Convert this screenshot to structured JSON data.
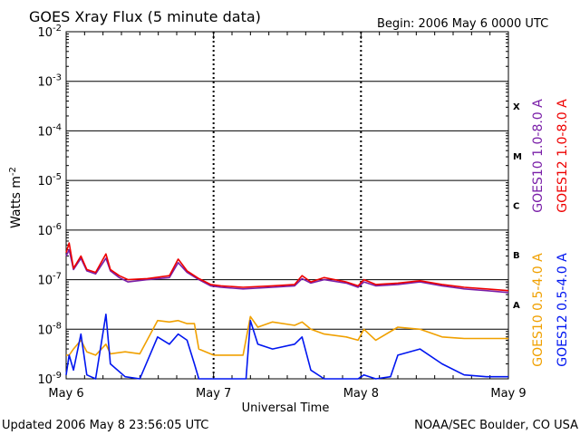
{
  "chart_data": {
    "type": "line",
    "title": "GOES Xray Flux (5 minute data)",
    "begin_label": "Begin:  2006 May 6 0000 UTC",
    "xlabel": "Universal Time",
    "ylabel": "Watts m",
    "ylabel_sup": "-2",
    "y_scale": "log",
    "ylim": [
      1e-09,
      0.01
    ],
    "y_ticks": [
      {
        "base": "10",
        "exp": "-9"
      },
      {
        "base": "10",
        "exp": "-8"
      },
      {
        "base": "10",
        "exp": "-7"
      },
      {
        "base": "10",
        "exp": "-6"
      },
      {
        "base": "10",
        "exp": "-5"
      },
      {
        "base": "10",
        "exp": "-4"
      },
      {
        "base": "10",
        "exp": "-3"
      },
      {
        "base": "10",
        "exp": "-2"
      }
    ],
    "x_range_days": [
      0,
      3
    ],
    "x_tick_labels": [
      "May 6",
      "May 7",
      "May 8",
      "May 9"
    ],
    "flare_classes": [
      {
        "label": "A",
        "exp": -8
      },
      {
        "label": "B",
        "exp": -7
      },
      {
        "label": "C",
        "exp": -6
      },
      {
        "label": "M",
        "exp": -5
      },
      {
        "label": "X",
        "exp": -4
      }
    ],
    "grid": "horizontal lines at each decade; dashed vertical lines at day boundaries",
    "legend_placement": "right, vertical text",
    "series": [
      {
        "name": "GOES10 1.0-8.0 A",
        "color": "#7a1fa8",
        "points": [
          [
            0.0,
            3e-07
          ],
          [
            0.02,
            4e-07
          ],
          [
            0.05,
            1.6e-07
          ],
          [
            0.1,
            2.7e-07
          ],
          [
            0.14,
            1.5e-07
          ],
          [
            0.2,
            1.3e-07
          ],
          [
            0.27,
            2.7e-07
          ],
          [
            0.3,
            1.5e-07
          ],
          [
            0.36,
            1.1e-07
          ],
          [
            0.42,
            9e-08
          ],
          [
            0.55,
            1e-07
          ],
          [
            0.7,
            1.1e-07
          ],
          [
            0.76,
            2.2e-07
          ],
          [
            0.82,
            1.4e-07
          ],
          [
            0.9,
            1e-07
          ],
          [
            0.98,
            7.5e-08
          ],
          [
            1.05,
            7e-08
          ],
          [
            1.2,
            6.5e-08
          ],
          [
            1.4,
            7e-08
          ],
          [
            1.55,
            7.5e-08
          ],
          [
            1.6,
            1.05e-07
          ],
          [
            1.66,
            8.5e-08
          ],
          [
            1.75,
            1e-07
          ],
          [
            1.9,
            8.5e-08
          ],
          [
            1.98,
            7e-08
          ],
          [
            2.02,
            9e-08
          ],
          [
            2.1,
            7.5e-08
          ],
          [
            2.25,
            8e-08
          ],
          [
            2.4,
            9e-08
          ],
          [
            2.55,
            7.5e-08
          ],
          [
            2.7,
            6.5e-08
          ],
          [
            2.85,
            6e-08
          ],
          [
            3.0,
            5.5e-08
          ]
        ]
      },
      {
        "name": "GOES12 1.0-8.0 A",
        "color": "#ee0000",
        "points": [
          [
            0.0,
            3.5e-07
          ],
          [
            0.02,
            5.5e-07
          ],
          [
            0.05,
            1.7e-07
          ],
          [
            0.1,
            3e-07
          ],
          [
            0.14,
            1.6e-07
          ],
          [
            0.2,
            1.4e-07
          ],
          [
            0.27,
            3.3e-07
          ],
          [
            0.3,
            1.6e-07
          ],
          [
            0.36,
            1.2e-07
          ],
          [
            0.42,
            1e-07
          ],
          [
            0.55,
            1.05e-07
          ],
          [
            0.7,
            1.2e-07
          ],
          [
            0.76,
            2.6e-07
          ],
          [
            0.82,
            1.5e-07
          ],
          [
            0.9,
            1.05e-07
          ],
          [
            0.98,
            8e-08
          ],
          [
            1.05,
            7.5e-08
          ],
          [
            1.2,
            7e-08
          ],
          [
            1.4,
            7.5e-08
          ],
          [
            1.55,
            8e-08
          ],
          [
            1.6,
            1.2e-07
          ],
          [
            1.66,
            9e-08
          ],
          [
            1.75,
            1.1e-07
          ],
          [
            1.9,
            9e-08
          ],
          [
            1.98,
            7.5e-08
          ],
          [
            2.02,
            1e-07
          ],
          [
            2.1,
            8e-08
          ],
          [
            2.25,
            8.5e-08
          ],
          [
            2.4,
            9.5e-08
          ],
          [
            2.55,
            8e-08
          ],
          [
            2.7,
            7e-08
          ],
          [
            2.85,
            6.5e-08
          ],
          [
            3.0,
            6e-08
          ]
        ]
      },
      {
        "name": "GOES10 0.5-4.0 A",
        "color": "#f0a000",
        "points": [
          [
            0.0,
            3e-09
          ],
          [
            0.02,
            3e-09
          ],
          [
            0.05,
            4e-09
          ],
          [
            0.1,
            6e-09
          ],
          [
            0.14,
            3.5e-09
          ],
          [
            0.2,
            3e-09
          ],
          [
            0.27,
            5e-09
          ],
          [
            0.3,
            3.2e-09
          ],
          [
            0.4,
            3.5e-09
          ],
          [
            0.5,
            3.2e-09
          ],
          [
            0.62,
            1.5e-08
          ],
          [
            0.7,
            1.4e-08
          ],
          [
            0.76,
            1.5e-08
          ],
          [
            0.82,
            1.3e-08
          ],
          [
            0.87,
            1.3e-08
          ],
          [
            0.9,
            4e-09
          ],
          [
            1.0,
            3e-09
          ],
          [
            1.2,
            3e-09
          ],
          [
            1.25,
            1.8e-08
          ],
          [
            1.3,
            1.1e-08
          ],
          [
            1.4,
            1.4e-08
          ],
          [
            1.55,
            1.2e-08
          ],
          [
            1.6,
            1.4e-08
          ],
          [
            1.66,
            1e-08
          ],
          [
            1.75,
            8e-09
          ],
          [
            1.9,
            7e-09
          ],
          [
            1.98,
            6e-09
          ],
          [
            2.02,
            1e-08
          ],
          [
            2.1,
            6e-09
          ],
          [
            2.25,
            1.1e-08
          ],
          [
            2.4,
            1e-08
          ],
          [
            2.55,
            7e-09
          ],
          [
            2.7,
            6.5e-09
          ],
          [
            2.85,
            6.5e-09
          ],
          [
            3.0,
            6.5e-09
          ]
        ]
      },
      {
        "name": "GOES12 0.5-4.0 A",
        "color": "#0016f0",
        "points": [
          [
            0.0,
            1.2e-09
          ],
          [
            0.02,
            3e-09
          ],
          [
            0.05,
            1.5e-09
          ],
          [
            0.1,
            8e-09
          ],
          [
            0.14,
            1.2e-09
          ],
          [
            0.2,
            1e-09
          ],
          [
            0.27,
            2e-08
          ],
          [
            0.3,
            2e-09
          ],
          [
            0.4,
            1.1e-09
          ],
          [
            0.5,
            1e-09
          ],
          [
            0.62,
            7e-09
          ],
          [
            0.7,
            5e-09
          ],
          [
            0.76,
            8e-09
          ],
          [
            0.82,
            6e-09
          ],
          [
            0.87,
            2e-09
          ],
          [
            0.9,
            1e-09
          ],
          [
            1.22,
            1e-09
          ],
          [
            1.25,
            1.5e-08
          ],
          [
            1.3,
            5e-09
          ],
          [
            1.4,
            4e-09
          ],
          [
            1.55,
            5e-09
          ],
          [
            1.6,
            7e-09
          ],
          [
            1.66,
            1.5e-09
          ],
          [
            1.75,
            1e-09
          ],
          [
            1.9,
            1e-09
          ],
          [
            1.98,
            1e-09
          ],
          [
            2.02,
            1.2e-09
          ],
          [
            2.1,
            1e-09
          ],
          [
            2.2,
            1.1e-09
          ],
          [
            2.25,
            3e-09
          ],
          [
            2.4,
            4e-09
          ],
          [
            2.55,
            2e-09
          ],
          [
            2.7,
            1.2e-09
          ],
          [
            2.85,
            1.1e-09
          ],
          [
            3.0,
            1.1e-09
          ]
        ]
      }
    ]
  },
  "footer": {
    "updated": "Updated 2006 May  8 23:56:05 UTC",
    "credit": "NOAA/SEC Boulder, CO USA"
  }
}
